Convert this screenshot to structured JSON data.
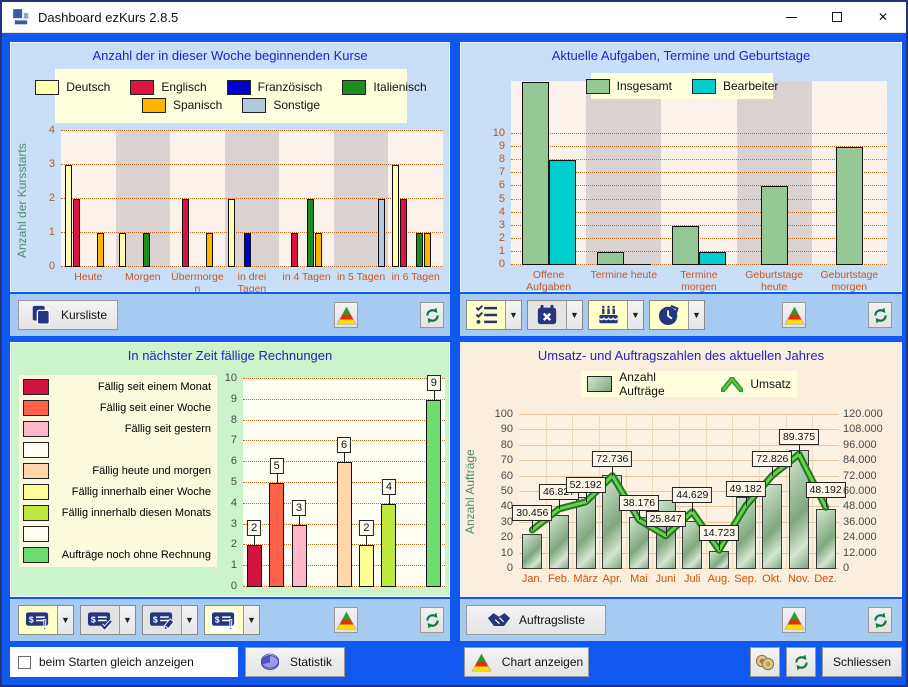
{
  "window": {
    "title": "Dashboard ezKurs 2.8.5"
  },
  "titlebar_controls": {
    "minimize": "minimize",
    "maximize": "maximize",
    "close": "✕"
  },
  "icons": {
    "app-icon": "window-grid",
    "minimize-icon": "—",
    "maximize-icon": "□",
    "close-icon": "✕",
    "refresh-icon": "green-circular-arrows",
    "chart-type-icon": "green-red-yellow-pyramid",
    "kursliste-icon": "clipboard-copy",
    "tasks-icon": "checklist",
    "calendar-x-icon": "calendar-with-x",
    "birthday-icon": "birthday-cake",
    "clock-icon": "clock-alarm",
    "invoice-overdue-icon": "cheque-exclamation",
    "invoice-paid-icon": "cheque-check",
    "invoice-edit-icon": "cheque-pencil",
    "invoice-open-icon": "cheque-exclamation",
    "auftragsliste-icon": "handshake",
    "statistik-icon": "pie-chart-3d",
    "coins-icon": "two-coins"
  },
  "toolbars": {
    "kurse": {
      "kursliste_label": "Kursliste"
    },
    "aufgaben_buttons": [
      {
        "icon": "tasks-icon",
        "bg": "#FFFFC8"
      },
      {
        "icon": "calendar-x-icon",
        "bg": "#E4E4E4"
      },
      {
        "icon": "birthday-icon",
        "bg": "#FFFFC8"
      },
      {
        "icon": "clock-icon",
        "bg": "#FFFFC8"
      }
    ],
    "rechnungen_buttons": [
      {
        "icon": "invoice-overdue-icon",
        "bg": "#FFFFC8"
      },
      {
        "icon": "invoice-paid-icon",
        "bg": "#E4E4E4"
      },
      {
        "icon": "invoice-edit-icon",
        "bg": "#E4E4E4"
      },
      {
        "icon": "invoice-open-icon",
        "bg": "#FFFFC8",
        "inner_white": true
      }
    ],
    "auftraege": {
      "auftragsliste_label": "Auftragsliste"
    }
  },
  "footer": {
    "checkbox_label": "beim Starten gleich anzeigen",
    "checkbox_checked": false,
    "statistik_label": "Statistik",
    "chart_anzeigen_label": "Chart anzeigen",
    "schliessen_label": "Schliessen"
  },
  "colors": {
    "client_bg": "#1158EE",
    "panel_blue": "#C9DFF7",
    "panel_green": "#CBF4CB",
    "panel_cream": "#FAEEDC",
    "toolbar_strip": "#A7CBF0",
    "legend_bg": "#FFFFDE",
    "plot_linen": "#FBF2EC",
    "band_grey": "#DBD2D2",
    "grid_orange": "#CC6B22",
    "title_blue": "#2222CC",
    "tick_orange": "#B55A1E",
    "axis_teal": "#4E8C6E"
  },
  "chart_data": [
    {
      "id": "kurse",
      "type": "bar",
      "title": "Anzahl der in dieser Woche beginnenden Kurse",
      "ylabel": "Anzahl der Kursstarts",
      "ylim": [
        0,
        4
      ],
      "yticks": [
        0,
        1,
        2,
        3,
        4
      ],
      "grid": "dotted",
      "band_alternate": true,
      "categories": [
        "Heute",
        "Morgen",
        "Übermorgen",
        "in drei Tagen",
        "in 4 Tagen",
        "in 5 Tagen",
        "in 6 Tagen"
      ],
      "series": [
        {
          "name": "Deutsch",
          "color": "#FFFFB4",
          "values": [
            3,
            1,
            0,
            2,
            0,
            0,
            3
          ]
        },
        {
          "name": "Englisch",
          "color": "#DC1441",
          "values": [
            2,
            0,
            2,
            0,
            1,
            0,
            2
          ]
        },
        {
          "name": "Französisch",
          "color": "#0000CC",
          "values": [
            0,
            0,
            0,
            1,
            0,
            0,
            0
          ]
        },
        {
          "name": "Italienisch",
          "color": "#1E8C1E",
          "values": [
            0,
            1,
            0,
            0,
            2,
            0,
            1
          ]
        },
        {
          "name": "Spanisch",
          "color": "#FFB400",
          "values": [
            1,
            0,
            1,
            0,
            1,
            0,
            1
          ]
        },
        {
          "name": "Sonstige",
          "color": "#B4C8DC",
          "values": [
            0,
            0,
            0,
            0,
            0,
            2,
            0
          ]
        }
      ],
      "legend_rows": [
        [
          "Deutsch",
          "Englisch",
          "Französisch",
          "Italienisch"
        ],
        [
          "Spanisch",
          "Sonstige"
        ]
      ]
    },
    {
      "id": "aufgaben",
      "type": "bar",
      "title": "Aktuelle Aufgaben, Termine und Geburtstage",
      "ylim": [
        0,
        10
      ],
      "yticks": [
        0,
        1,
        2,
        3,
        4,
        5,
        6,
        7,
        8,
        9,
        10
      ],
      "grid": "dotted",
      "band_alternate": true,
      "categories": [
        "Offene Aufgaben",
        "Termine heute",
        "Termine morgen",
        "Geburtstage heute",
        "Geburtstage morgen"
      ],
      "series": [
        {
          "name": "Insgesamt",
          "color": "#96C896",
          "values": [
            14,
            1,
            3,
            6,
            9
          ],
          "clipped_at_plot_top": [
            true,
            false,
            false,
            false,
            false
          ]
        },
        {
          "name": "Bearbeiter",
          "color": "#00CDCD",
          "values": [
            8,
            0,
            1,
            null,
            null
          ]
        }
      ]
    },
    {
      "id": "rechnungen",
      "type": "bar",
      "title": "In nächster Zeit fällige Rechnungen",
      "ylim": [
        0,
        10
      ],
      "yticks": [
        0,
        1,
        2,
        3,
        4,
        5,
        6,
        7,
        8,
        9,
        10
      ],
      "grid": "dotted",
      "data_labels": true,
      "categories": [
        "Fällig seit einem Monat",
        "Fällig seit einer Woche",
        "Fällig seit gestern",
        "",
        "Fällig heute und morgen",
        "Fällig innerhalb einer Woche",
        "Fällig innerhalb diesen Monats",
        "",
        "Aufträge noch ohne Rechnung"
      ],
      "values": [
        2,
        5,
        3,
        0,
        6,
        2,
        4,
        0,
        9
      ],
      "colors": [
        "#D21441",
        "#FF6347",
        "#FFB6C6",
        "#FFFFF0",
        "#FFD7A8",
        "#FFFF96",
        "#BFE93E",
        "#FFFFF0",
        "#6EDC6E"
      ]
    },
    {
      "id": "umsatz",
      "type": "bar+line",
      "title": "Umsatz- und Auftragszahlen des aktuellen Jahres",
      "ylabel_left": "Anzahl Aufträge",
      "ylim_left": [
        0,
        100
      ],
      "yticks_left": [
        0,
        10,
        20,
        30,
        40,
        50,
        60,
        70,
        80,
        90,
        100
      ],
      "ylim_right": [
        0,
        120000
      ],
      "yticks_right": [
        "120.000",
        "108.000",
        "96.000",
        "84.000",
        "72.000",
        "60.000",
        "48.000",
        "36.000",
        "24.000",
        "12.000",
        "0"
      ],
      "categories": [
        "Jan.",
        "Feb.",
        "März",
        "Apr.",
        "Mai",
        "Juni",
        "Juli",
        "Aug.",
        "Sep.",
        "Okt.",
        "Nov.",
        "Dez."
      ],
      "series": [
        {
          "name": "Anzahl Aufträge",
          "render": "bar",
          "color_light": "#D3E6CF",
          "color_dark": "#7FA87D",
          "values": [
            23,
            35,
            47,
            61,
            34,
            45,
            31,
            12,
            47,
            55,
            77,
            39
          ]
        },
        {
          "name": "Umsatz",
          "render": "line",
          "color": "#2E9B2E",
          "values": [
            30456,
            46827,
            52192,
            72736,
            38176,
            25847,
            44629,
            14723,
            49182,
            72826,
            89375,
            48192
          ],
          "labels": [
            "30.456",
            "46.827",
            "52.192",
            "72.736",
            "38.176",
            "25.847",
            "44.629",
            "14.723",
            "49.182",
            "72.826",
            "89.375",
            "48.192"
          ]
        }
      ]
    }
  ]
}
